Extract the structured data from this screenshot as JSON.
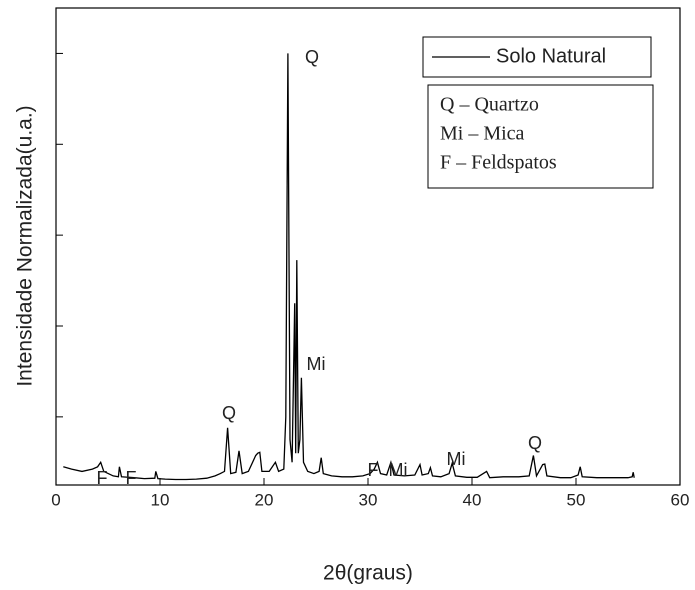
{
  "chart_data": {
    "type": "line",
    "xlabel": "2θ(graus)",
    "ylabel": "Intensidade Normalizada(u.a.)",
    "x": [
      0.7,
      1.5,
      2.5,
      3.5,
      4.0,
      4.3,
      4.6,
      5.5,
      6.0,
      6.1,
      6.3,
      7.5,
      8.5,
      9.5,
      9.6,
      9.8,
      10.5,
      11.5,
      12.5,
      13.5,
      14.5,
      15.3,
      15.8,
      16.2,
      16.5,
      16.8,
      17.3,
      17.6,
      17.9,
      18.5,
      19.2,
      19.4,
      19.6,
      19.8,
      20.5,
      21.1,
      21.4,
      21.9,
      22.1,
      22.3,
      22.5,
      22.7,
      22.95,
      23.05,
      23.15,
      23.3,
      23.45,
      23.6,
      23.8,
      24.2,
      24.8,
      25.3,
      25.5,
      25.7,
      26.5,
      27.5,
      28.5,
      29.5,
      30.2,
      30.6,
      30.9,
      31.2,
      31.8,
      32.2,
      32.5,
      33.5,
      34.5,
      35.0,
      35.2,
      35.8,
      36.0,
      36.2,
      37.0,
      37.8,
      38.1,
      38.4,
      39.5,
      40.5,
      41.4,
      41.7,
      43.0,
      44.5,
      45.5,
      45.9,
      46.2,
      46.8,
      47.0,
      47.2,
      48.5,
      49.5,
      50.2,
      50.4,
      50.6,
      52.0,
      53.5,
      55.0,
      55.4,
      55.5,
      55.6
    ],
    "series": [
      {
        "name": "Solo Natural",
        "color": "#000000",
        "values": [
          0.09,
          0.085,
          0.08,
          0.085,
          0.09,
          0.1,
          0.08,
          0.07,
          0.068,
          0.09,
          0.068,
          0.066,
          0.064,
          0.065,
          0.08,
          0.064,
          0.063,
          0.062,
          0.062,
          0.063,
          0.065,
          0.07,
          0.075,
          0.08,
          0.176,
          0.075,
          0.078,
          0.125,
          0.075,
          0.08,
          0.115,
          0.12,
          0.122,
          0.08,
          0.08,
          0.1,
          0.08,
          0.085,
          0.2,
          1.0,
          0.15,
          0.1,
          0.45,
          0.12,
          0.545,
          0.12,
          0.15,
          0.286,
          0.1,
          0.08,
          0.075,
          0.08,
          0.11,
          0.075,
          0.07,
          0.068,
          0.068,
          0.07,
          0.075,
          0.085,
          0.1,
          0.075,
          0.072,
          0.1,
          0.072,
          0.07,
          0.072,
          0.095,
          0.072,
          0.075,
          0.088,
          0.07,
          0.068,
          0.075,
          0.098,
          0.07,
          0.067,
          0.067,
          0.08,
          0.066,
          0.068,
          0.068,
          0.07,
          0.115,
          0.07,
          0.095,
          0.096,
          0.07,
          0.066,
          0.066,
          0.072,
          0.09,
          0.068,
          0.066,
          0.066,
          0.066,
          0.068,
          0.078,
          0.066
        ]
      }
    ],
    "xlim": [
      0,
      60
    ],
    "xticks": [
      0,
      10,
      20,
      30,
      40,
      50,
      60
    ],
    "ylim": [
      0.05,
      1.1
    ],
    "yticks": [
      0.2,
      0.4,
      0.6,
      0.8,
      1.0
    ],
    "legend": "upper right",
    "annotations": [
      {
        "text": "F"
      },
      {
        "text": "F"
      },
      {
        "text": "Q"
      },
      {
        "text": "Q"
      },
      {
        "text": "Mi"
      },
      {
        "text": "F"
      },
      {
        "text": "Mi"
      },
      {
        "text": "Mi"
      },
      {
        "text": "Q"
      }
    ],
    "notes": [
      "Q – Quartzo",
      "Mi – Mica",
      "F – Feldspatos"
    ]
  }
}
